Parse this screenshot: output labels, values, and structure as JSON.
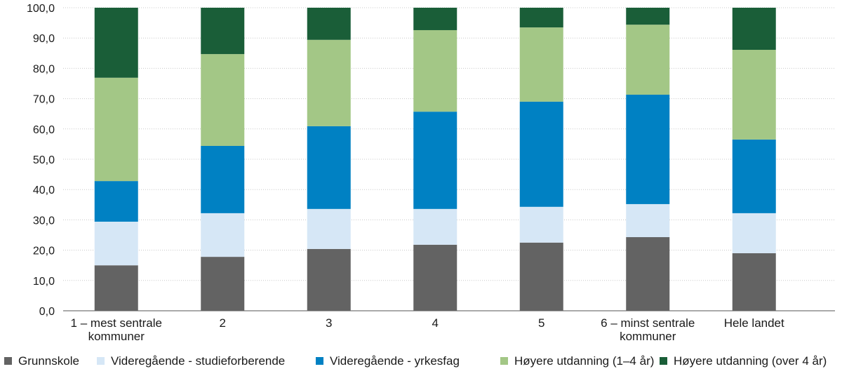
{
  "chart_data": {
    "type": "bar",
    "stacked": true,
    "title": "",
    "xlabel": "",
    "ylabel": "",
    "ylim": [
      0,
      100
    ],
    "yticks": [
      "0,0",
      "10,0",
      "20,0",
      "30,0",
      "40,0",
      "50,0",
      "60,0",
      "70,0",
      "80,0",
      "90,0",
      "100,0"
    ],
    "grid": true,
    "legend_position": "bottom",
    "categories": [
      [
        "1 – mest sentrale",
        "kommuner"
      ],
      [
        "2"
      ],
      [
        "3"
      ],
      [
        "4"
      ],
      [
        "5"
      ],
      [
        "6 – minst sentrale",
        "kommuner"
      ],
      [
        "Hele landet"
      ]
    ],
    "series": [
      {
        "name": "Grunnskole",
        "color": "#636363",
        "values": [
          15.0,
          17.8,
          20.4,
          21.8,
          22.5,
          24.3,
          19.0
        ]
      },
      {
        "name": "Videregående - studieforberende",
        "color": "#d6e7f6",
        "values": [
          14.4,
          14.4,
          13.2,
          11.8,
          11.8,
          10.9,
          13.2
        ]
      },
      {
        "name": "Videregående - yrkesfag",
        "color": "#0081c3",
        "values": [
          13.4,
          22.2,
          27.3,
          32.1,
          34.7,
          36.1,
          24.3
        ]
      },
      {
        "name": "Høyere utdanning (1–4 år)",
        "color": "#a3c786",
        "values": [
          34.1,
          30.3,
          28.5,
          26.9,
          24.5,
          23.1,
          29.6
        ]
      },
      {
        "name": "Høyere utdanning (over 4 år)",
        "color": "#1a5e38",
        "values": [
          23.1,
          15.3,
          10.6,
          7.4,
          6.5,
          5.6,
          13.9
        ]
      }
    ]
  }
}
